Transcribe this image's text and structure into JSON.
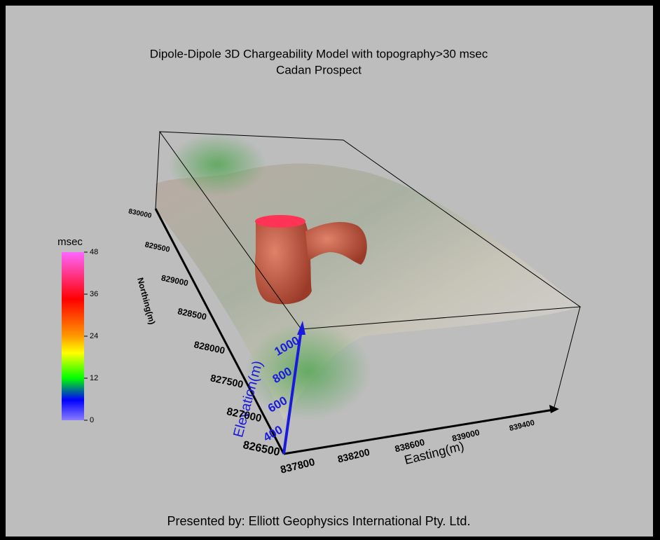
{
  "header": {
    "title": "Dipole-Dipole 3D Chargeability Model with topography>30 msec",
    "subtitle": "Cadan Prospect"
  },
  "colorbar": {
    "label": "msec",
    "range": [
      0,
      48
    ],
    "ticks": [
      0,
      12,
      24,
      36,
      48
    ]
  },
  "axes": {
    "northing": {
      "label": "Northing(m)",
      "ticks": [
        830000,
        829500,
        829000,
        828500,
        828000,
        827500,
        827000,
        826500
      ]
    },
    "elevation": {
      "label": "Elevation(m)",
      "ticks": [
        400,
        600,
        800,
        1000
      ]
    },
    "easting": {
      "label": "Easting(m)",
      "ticks": [
        837800,
        838200,
        838600,
        839000,
        839400
      ]
    }
  },
  "footer": "Presented by: Elliott Geophysics International Pty. Ltd."
}
